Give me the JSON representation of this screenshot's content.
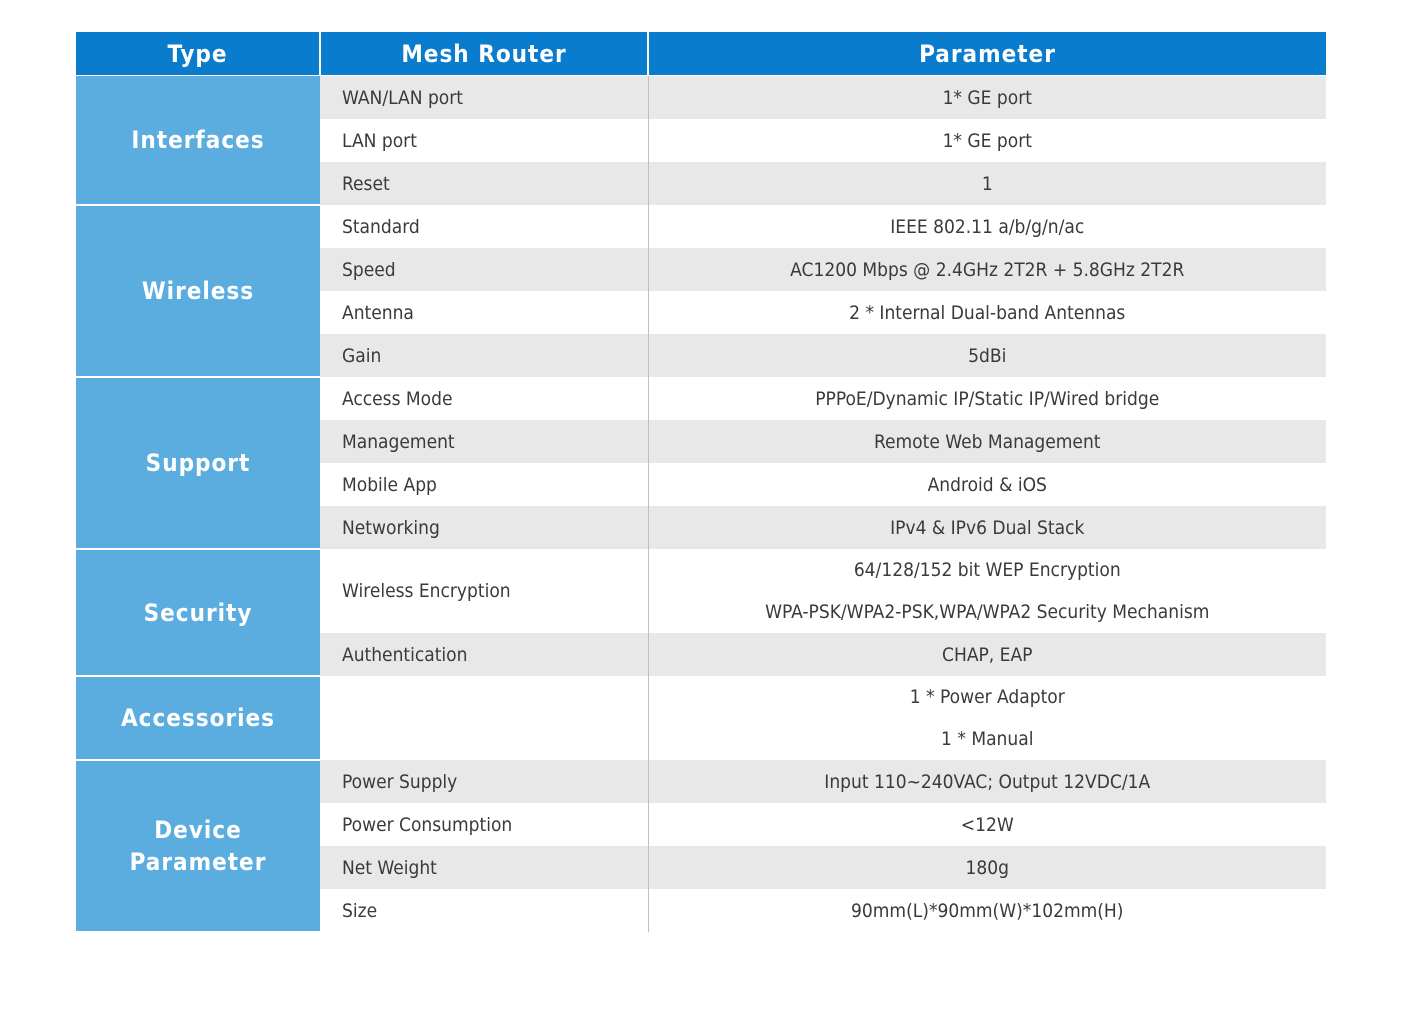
{
  "header": {
    "type_label": "Type",
    "model_label": "Mesh Router",
    "parameter_label": "Parameter"
  },
  "colors": {
    "header_bg": "#0a7ccd",
    "type_bg": "#5baddf",
    "row_shade": "#e8e8e8",
    "row_plain": "#ffffff"
  },
  "groups": [
    {
      "type": "Interfaces",
      "rows": [
        {
          "item": "WAN/LAN port",
          "values": [
            "1* GE port"
          ]
        },
        {
          "item": "LAN port",
          "values": [
            "1* GE port"
          ]
        },
        {
          "item": "Reset",
          "values": [
            "1"
          ]
        }
      ]
    },
    {
      "type": "Wireless",
      "rows": [
        {
          "item": "Standard",
          "values": [
            "IEEE 802.11 a/b/g/n/ac"
          ]
        },
        {
          "item": "Speed",
          "values": [
            "AC1200 Mbps @ 2.4GHz 2T2R + 5.8GHz 2T2R"
          ]
        },
        {
          "item": "Antenna",
          "values": [
            "2 * Internal Dual-band Antennas"
          ]
        },
        {
          "item": "Gain",
          "values": [
            "5dBi"
          ]
        }
      ]
    },
    {
      "type": "Support",
      "rows": [
        {
          "item": "Access Mode",
          "values": [
            "PPPoE/Dynamic IP/Static IP/Wired bridge"
          ]
        },
        {
          "item": "Management",
          "values": [
            "Remote Web Management"
          ]
        },
        {
          "item": "Mobile App",
          "values": [
            "Android & iOS"
          ]
        },
        {
          "item": "Networking",
          "values": [
            "IPv4 & IPv6 Dual Stack"
          ]
        }
      ]
    },
    {
      "type": "Security",
      "rows": [
        {
          "item": "Wireless Encryption",
          "values": [
            "64/128/152 bit WEP Encryption",
            "WPA-PSK/WPA2-PSK,WPA/WPA2 Security Mechanism"
          ]
        },
        {
          "item": "Authentication",
          "values": [
            "CHAP, EAP"
          ]
        }
      ]
    },
    {
      "type": "Accessories",
      "rows": [
        {
          "item": "",
          "values": [
            "1 * Power Adaptor",
            "1 * Manual"
          ]
        }
      ]
    },
    {
      "type": "Device Parameter",
      "rows": [
        {
          "item": "Power Supply",
          "values": [
            "Input 110~240VAC; Output 12VDC/1A"
          ]
        },
        {
          "item": "Power Consumption",
          "values": [
            "<12W"
          ]
        },
        {
          "item": "Net Weight",
          "values": [
            "180g"
          ]
        },
        {
          "item": "Size",
          "values": [
            "90mm(L)*90mm(W)*102mm(H)"
          ]
        }
      ]
    }
  ]
}
